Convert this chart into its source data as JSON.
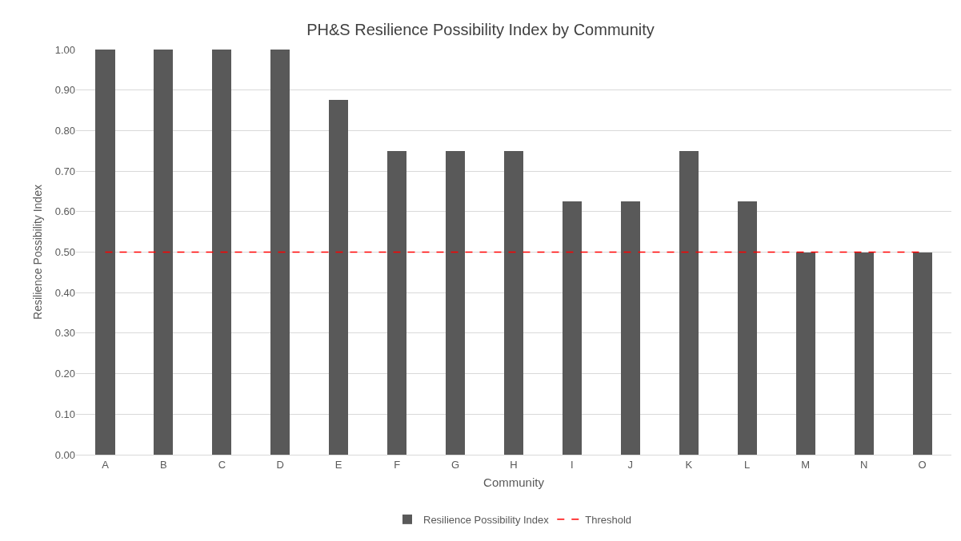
{
  "chart_data": {
    "type": "bar",
    "title": "PH&S Resilience Possibility Index by Community",
    "xlabel": "Community",
    "ylabel": "Resilience Possibility Index",
    "categories": [
      "A",
      "B",
      "C",
      "D",
      "E",
      "F",
      "G",
      "H",
      "I",
      "J",
      "K",
      "L",
      "M",
      "N",
      "O"
    ],
    "series": [
      {
        "name": "Resilience Possibility Index",
        "color": "#595959",
        "values": [
          1.0,
          1.0,
          1.0,
          1.0,
          0.875,
          0.75,
          0.75,
          0.75,
          0.625,
          0.625,
          0.75,
          0.625,
          0.5,
          0.5,
          0.5
        ]
      }
    ],
    "ref_lines": [
      {
        "axis": "y",
        "value": 0.5,
        "label": "Threshold",
        "color": "#ff0000",
        "line_style": "dashed"
      }
    ],
    "ylim": [
      0,
      1
    ],
    "yticks": [
      {
        "value": 0,
        "label": "0.00"
      },
      {
        "value": 0.1,
        "label": "0.10"
      },
      {
        "value": 0.2,
        "label": "0.20"
      },
      {
        "value": 0.3,
        "label": "0.30"
      },
      {
        "value": 0.4,
        "label": "0.40"
      },
      {
        "value": 0.5,
        "label": "0.50"
      },
      {
        "value": 0.6,
        "label": "0.60"
      },
      {
        "value": 0.7,
        "label": "0.70"
      },
      {
        "value": 0.8,
        "label": "0.80"
      },
      {
        "value": 0.9,
        "label": "0.90"
      },
      {
        "value": 1,
        "label": "1.00"
      }
    ],
    "grid": "y",
    "legend": "bottom"
  }
}
